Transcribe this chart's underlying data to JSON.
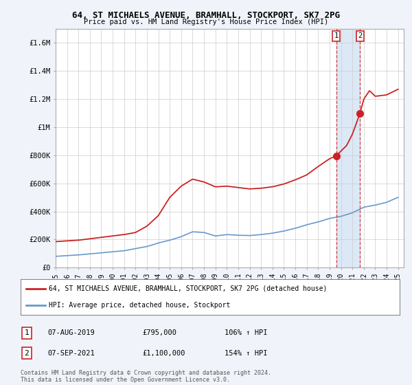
{
  "title": "64, ST MICHAELS AVENUE, BRAMHALL, STOCKPORT, SK7 2PG",
  "subtitle": "Price paid vs. HM Land Registry's House Price Index (HPI)",
  "ylim": [
    0,
    1700000
  ],
  "yticks": [
    0,
    200000,
    400000,
    600000,
    800000,
    1000000,
    1200000,
    1400000,
    1600000
  ],
  "ytick_labels": [
    "£0",
    "£200K",
    "£400K",
    "£600K",
    "£800K",
    "£1M",
    "£1.2M",
    "£1.4M",
    "£1.6M"
  ],
  "xlim_start": 1995.0,
  "xlim_end": 2025.5,
  "xticks": [
    1995,
    1996,
    1997,
    1998,
    1999,
    2000,
    2001,
    2002,
    2003,
    2004,
    2005,
    2006,
    2007,
    2008,
    2009,
    2010,
    2011,
    2012,
    2013,
    2014,
    2015,
    2016,
    2017,
    2018,
    2019,
    2020,
    2021,
    2022,
    2023,
    2024,
    2025
  ],
  "hpi_color": "#6699cc",
  "price_color": "#cc2222",
  "vline1_x": 2019.58,
  "vline2_x": 2021.67,
  "sale1_x": 2019.58,
  "sale1_y": 795000,
  "sale2_x": 2021.67,
  "sale2_y": 1100000,
  "sale1_label": "1",
  "sale2_label": "2",
  "sale1_date": "07-AUG-2019",
  "sale1_price": "£795,000",
  "sale1_hpi": "106% ↑ HPI",
  "sale2_date": "07-SEP-2021",
  "sale2_price": "£1,100,000",
  "sale2_hpi": "154% ↑ HPI",
  "legend_line1": "64, ST MICHAELS AVENUE, BRAMHALL, STOCKPORT, SK7 2PG (detached house)",
  "legend_line2": "HPI: Average price, detached house, Stockport",
  "footer": "Contains HM Land Registry data © Crown copyright and database right 2024.\nThis data is licensed under the Open Government Licence v3.0.",
  "background_color": "#f0f4fa",
  "plot_bg_color": "#ffffff",
  "shade_color": "#dce8f5"
}
